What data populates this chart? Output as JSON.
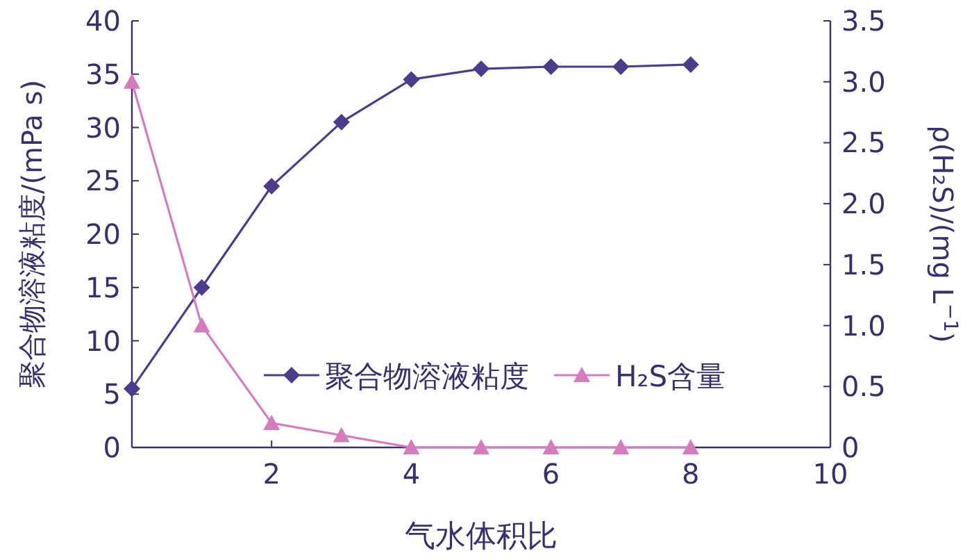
{
  "chart_data": {
    "type": "line",
    "xlabel": "气水体积比",
    "ylabel": "聚合物溶液粘度/(mPa s)",
    "y2label": "ρ(H₂S)/(mg L$^{−1}$)",
    "x": [
      0,
      1,
      2,
      3,
      4,
      5,
      6,
      7,
      8
    ],
    "series": [
      {
        "name": "聚合物溶液粘度",
        "color": "#4d3b8e",
        "marker": "diamond",
        "values": [
          5.5,
          15,
          24.5,
          30.5,
          34.5,
          35.5,
          35.7,
          35.7,
          35.9
        ]
      },
      {
        "name": "H₂S含量",
        "color": "#d77bbf",
        "marker": "triangle",
        "axis": "y2",
        "values": [
          3.0,
          1.0,
          0.2,
          0.1,
          0,
          0,
          0,
          0,
          0
        ]
      }
    ],
    "xlim": [
      0,
      10
    ],
    "xticks": [
      2,
      4,
      6,
      8,
      10
    ],
    "ylim": [
      0,
      40
    ],
    "yticks": [
      0,
      5,
      10,
      15,
      20,
      25,
      30,
      35,
      40
    ],
    "y2lim": [
      0,
      3.5
    ],
    "y2ticks": [
      0,
      {
        "value": 0.5,
        "label": "0.5"
      },
      {
        "value": 1,
        "label": "1.0"
      },
      {
        "value": 1.5,
        "label": "1.5"
      },
      {
        "value": 2,
        "label": "2.0"
      },
      {
        "value": 2.5,
        "label": "2.5"
      },
      {
        "value": 3,
        "label": "3.0"
      },
      {
        "value": 3.5,
        "label": "3.5"
      }
    ],
    "grid": false,
    "legend": "right",
    "line_style": "solid"
  }
}
